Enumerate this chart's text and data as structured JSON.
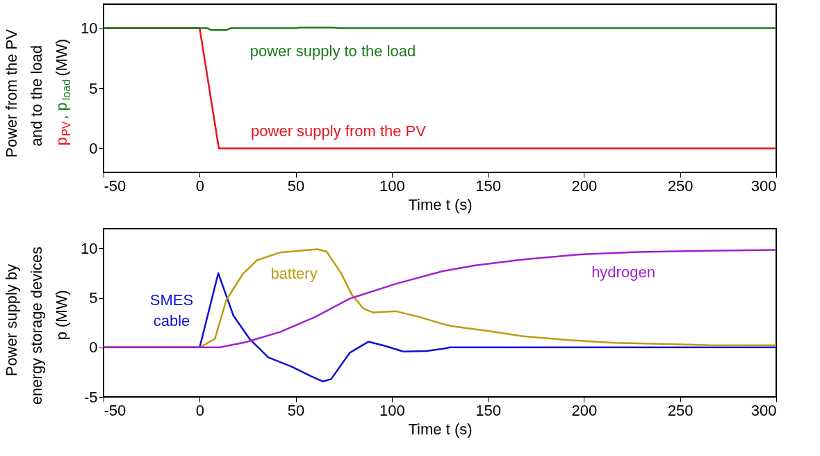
{
  "chart_data": [
    {
      "type": "line",
      "xlabel": "Time  t (s)",
      "ylabel": "Power from the PV\nand to the load\np$_{PV}$, p$_{load}$ (MW)",
      "xlim": [
        -50,
        300
      ],
      "ylim": [
        -2,
        12
      ],
      "xticks": [
        -50,
        0,
        50,
        100,
        150,
        200,
        250,
        300
      ],
      "yticks": [
        0,
        5,
        10
      ],
      "grid": false,
      "legend": false,
      "marker": "none",
      "line_style": "solid",
      "series": [
        {
          "name": "power supply from the PV",
          "color": "#e8141e",
          "x": [
            -50,
            0,
            10,
            300
          ],
          "values": [
            10,
            10,
            0,
            0
          ]
        },
        {
          "name": "power supply to the load",
          "color": "#1a7a1a",
          "x": [
            -50,
            4,
            6,
            14,
            16,
            50,
            52,
            70,
            72,
            300
          ],
          "values": [
            10,
            10,
            9.85,
            9.85,
            10,
            10,
            10.05,
            10.05,
            10,
            10
          ]
        }
      ]
    },
    {
      "type": "line",
      "xlabel": "Time  t (s)",
      "ylabel": "Power supply by\nenergy storage devices\np (MW)",
      "xlim": [
        -50,
        300
      ],
      "ylim": [
        -5,
        12
      ],
      "xticks": [
        -50,
        0,
        50,
        100,
        150,
        200,
        250,
        300
      ],
      "yticks": [
        -5,
        0,
        5,
        10
      ],
      "grid": false,
      "legend": false,
      "marker": "none",
      "line_style": "solid",
      "series": [
        {
          "name": "SMES cable",
          "color": "#1010d0",
          "x": [
            -50,
            0,
            9.7,
            17.6,
            26,
            35.7,
            47.8,
            57.5,
            64.2,
            68.4,
            78.1,
            87.8,
            96.3,
            106,
            118,
            126.6,
            130.2,
            300
          ],
          "values": [
            0,
            0,
            7.5,
            3.2,
            0.86,
            -1.0,
            -1.93,
            -2.86,
            -3.44,
            -3.2,
            -0.54,
            0.58,
            0.16,
            -0.42,
            -0.37,
            -0.14,
            0,
            0
          ]
        },
        {
          "name": "battery",
          "color": "#c09a10",
          "x": [
            -50,
            0,
            7.9,
            13.9,
            22.4,
            29.7,
            41.8,
            61.2,
            66,
            73.3,
            79.3,
            85.4,
            90.2,
            102.3,
            114.5,
            126.6,
            131.4,
            149.6,
            167.7,
            192,
            216.2,
            240.4,
            264.6,
            300
          ],
          "values": [
            0,
            0,
            0.86,
            4.8,
            7.4,
            8.8,
            9.6,
            9.93,
            9.7,
            7.6,
            5.3,
            3.9,
            3.54,
            3.65,
            3.07,
            2.37,
            2.14,
            1.67,
            1.14,
            0.74,
            0.47,
            0.35,
            0.23,
            0.21
          ]
        },
        {
          "name": "hydrogen",
          "color": "#a020d0",
          "x": [
            -50,
            10.3,
            23.6,
            41.8,
            60,
            78.1,
            102.3,
            126.6,
            143.5,
            167.7,
            198,
            228.3,
            264.6,
            300
          ],
          "values": [
            0,
            0,
            0.51,
            1.56,
            3.07,
            4.93,
            6.44,
            7.72,
            8.3,
            8.88,
            9.4,
            9.65,
            9.77,
            9.86
          ]
        }
      ]
    }
  ]
}
